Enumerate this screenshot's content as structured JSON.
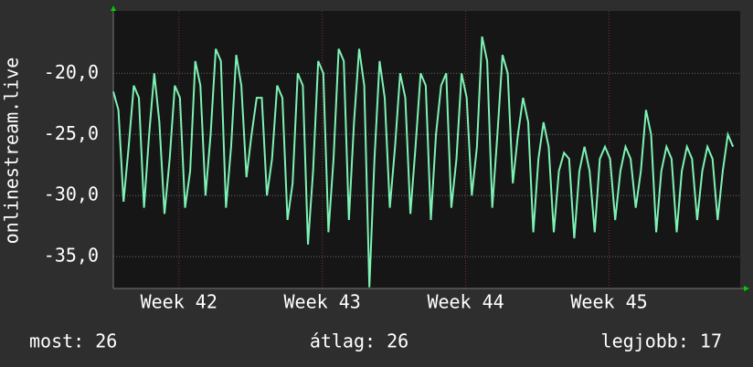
{
  "chart_data": {
    "type": "line",
    "ylabel": "onlinestream.live",
    "color": "#7df2b4",
    "grid": true,
    "xlim": [
      0,
      30.6
    ],
    "ylim": [
      -37.6,
      -14.9
    ],
    "xticks": [
      {
        "value": 3.2,
        "label": "Week 42"
      },
      {
        "value": 10.2,
        "label": "Week 43"
      },
      {
        "value": 17.2,
        "label": "Week 44"
      },
      {
        "value": 24.2,
        "label": "Week 45"
      }
    ],
    "yticks": [
      {
        "value": -35,
        "label": "-35,0"
      },
      {
        "value": -30,
        "label": "-30,0"
      },
      {
        "value": -25,
        "label": "-25,0"
      },
      {
        "value": -20,
        "label": "-20,0"
      }
    ],
    "x": [
      0,
      0.25,
      0.5,
      0.75,
      1,
      1.25,
      1.5,
      1.75,
      2,
      2.25,
      2.5,
      2.75,
      3,
      3.25,
      3.5,
      3.75,
      4,
      4.25,
      4.5,
      4.75,
      5,
      5.25,
      5.5,
      5.75,
      6,
      6.25,
      6.5,
      6.75,
      7,
      7.25,
      7.5,
      7.75,
      8,
      8.25,
      8.5,
      8.75,
      9,
      9.25,
      9.5,
      9.75,
      10,
      10.25,
      10.5,
      10.75,
      11,
      11.25,
      11.5,
      11.75,
      12,
      12.25,
      12.5,
      12.75,
      13,
      13.25,
      13.5,
      13.75,
      14,
      14.25,
      14.5,
      14.75,
      15,
      15.25,
      15.5,
      15.75,
      16,
      16.25,
      16.5,
      16.75,
      17,
      17.25,
      17.5,
      17.75,
      18,
      18.25,
      18.5,
      18.75,
      19,
      19.25,
      19.5,
      19.75,
      20,
      20.25,
      20.5,
      20.75,
      21,
      21.25,
      21.5,
      21.75,
      22,
      22.25,
      22.5,
      22.75,
      23,
      23.25,
      23.5,
      23.75,
      24,
      24.25,
      24.5,
      24.75,
      25,
      25.25,
      25.5,
      25.75,
      26,
      26.25,
      26.5,
      26.75,
      27,
      27.25,
      27.5,
      27.75,
      28,
      28.25,
      28.5,
      28.75,
      29,
      29.25,
      29.5,
      29.75,
      30,
      30.25
    ],
    "values": [
      -21.5,
      -23,
      -30.5,
      -26,
      -21,
      -22,
      -31,
      -25,
      -20,
      -24,
      -31.5,
      -27,
      -21,
      -22,
      -31,
      -28,
      -19,
      -21,
      -30,
      -25,
      -18,
      -19,
      -31,
      -26,
      -18.5,
      -21,
      -28.5,
      -25,
      -22,
      -22,
      -30,
      -27,
      -21,
      -22,
      -32,
      -29,
      -20,
      -21,
      -34,
      -28,
      -19,
      -20,
      -33,
      -27,
      -18,
      -19,
      -32,
      -24,
      -18,
      -21,
      -37.5,
      -27,
      -19,
      -22,
      -31,
      -26,
      -20,
      -22,
      -31.5,
      -26,
      -20,
      -21,
      -32,
      -25,
      -21,
      -20,
      -31,
      -27,
      -20,
      -22,
      -30,
      -26,
      -17,
      -19,
      -31,
      -25,
      -18.5,
      -20,
      -29,
      -25,
      -22,
      -24,
      -33,
      -27,
      -24,
      -26,
      -33,
      -28,
      -26.5,
      -27,
      -33.5,
      -28,
      -26,
      -28,
      -33,
      -27,
      -26,
      -27,
      -32,
      -28,
      -26,
      -27,
      -31,
      -28,
      -23,
      -25,
      -33,
      -28,
      -26,
      -27,
      -33,
      -28,
      -26,
      -27,
      -32,
      -28,
      -26,
      -27,
      -32,
      -28,
      -25,
      -26
    ],
    "footer": {
      "now": "most: 26",
      "avg": "átlag: 26",
      "best": "legjobb: 17"
    }
  }
}
